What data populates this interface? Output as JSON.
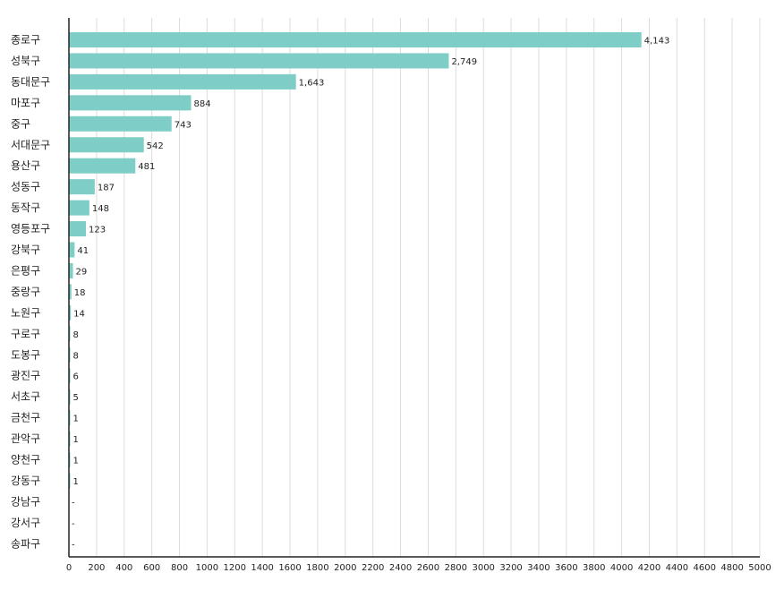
{
  "chart_data": {
    "type": "bar",
    "orientation": "horizontal",
    "title": "",
    "xlabel": "",
    "ylabel": "",
    "xlim": [
      0,
      5000
    ],
    "x_ticks": [
      0,
      200,
      400,
      600,
      800,
      1000,
      1200,
      1400,
      1600,
      1800,
      2000,
      2200,
      2400,
      2600,
      2800,
      3000,
      3200,
      3400,
      3600,
      3800,
      4000,
      4200,
      4400,
      4600,
      4800,
      5000
    ],
    "grid": "vertical",
    "legend": "none",
    "bar_color": "#7ecdc6",
    "categories": [
      "종로구",
      "성북구",
      "동대문구",
      "마포구",
      "중구",
      "서대문구",
      "용산구",
      "성동구",
      "동작구",
      "영등포구",
      "강북구",
      "은평구",
      "중랑구",
      "노원구",
      "구로구",
      "도봉구",
      "광진구",
      "서초구",
      "금천구",
      "관악구",
      "양천구",
      "강동구",
      "강남구",
      "강서구",
      "송파구"
    ],
    "values": [
      4143,
      2749,
      1643,
      884,
      743,
      542,
      481,
      187,
      148,
      123,
      41,
      29,
      18,
      14,
      8,
      8,
      6,
      5,
      1,
      1,
      1,
      1,
      null,
      null,
      null
    ],
    "data_labels": [
      "4,143",
      "2,749",
      "1,643",
      "884",
      "743",
      "542",
      "481",
      "187",
      "148",
      "123",
      "41",
      "29",
      "18",
      "14",
      "8",
      "8",
      "6",
      "5",
      "1",
      "1",
      "1",
      "1",
      "-",
      "-",
      "-"
    ]
  }
}
